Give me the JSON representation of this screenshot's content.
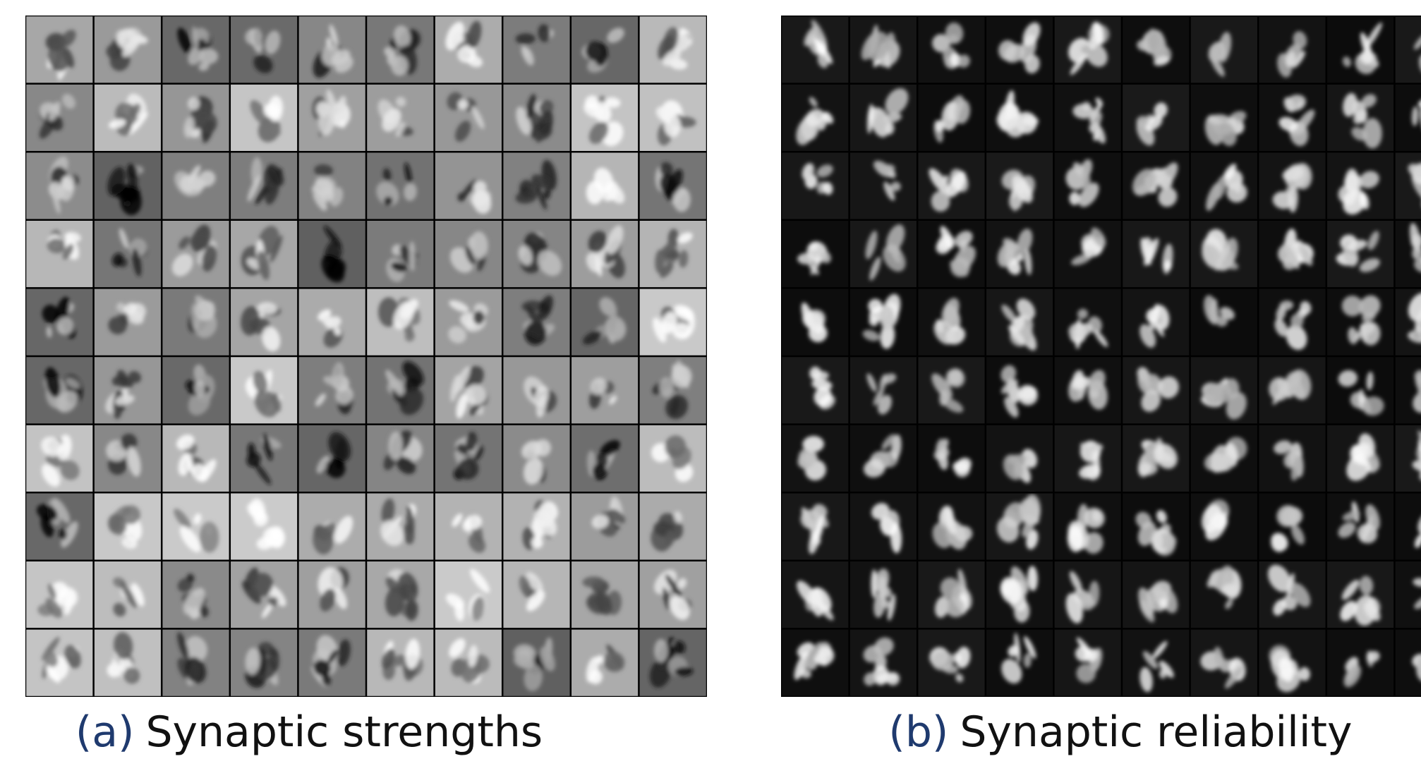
{
  "panels": [
    {
      "label": "(a)",
      "caption": "Synaptic strengths"
    },
    {
      "label": "(b)",
      "caption": "Synaptic reliability"
    }
  ]
}
